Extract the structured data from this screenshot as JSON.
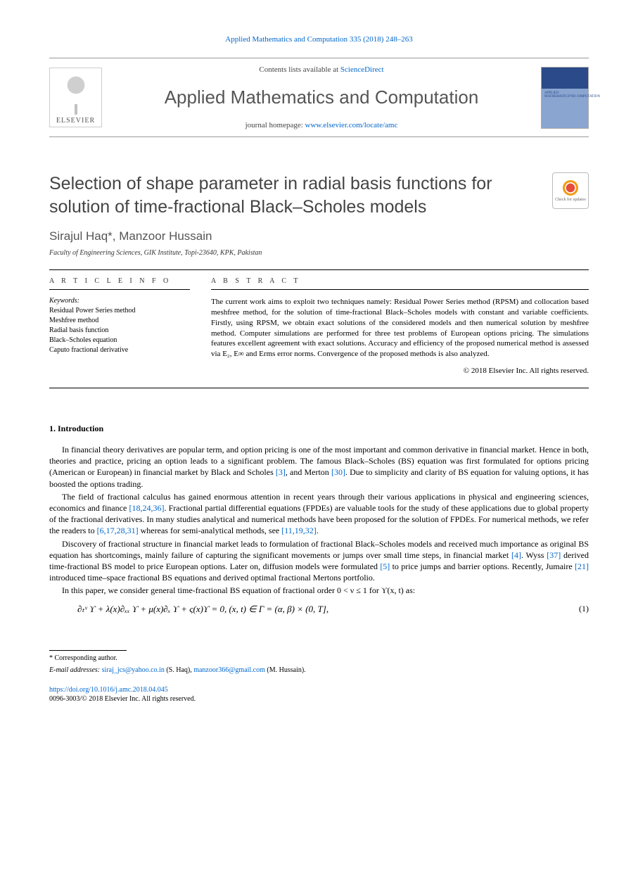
{
  "citation": {
    "text": "Applied Mathematics and Computation 335 (2018) 248–263"
  },
  "header": {
    "contents_prefix": "Contents lists available at ",
    "contents_link": "ScienceDirect",
    "journal": "Applied Mathematics and Computation",
    "homepage_prefix": "journal homepage: ",
    "homepage_url": "www.elsevier.com/locate/amc",
    "publisher": "ELSEVIER"
  },
  "title": "Selection of shape parameter in radial basis functions for solution of time-fractional Black–Scholes models",
  "crossmark_label": "Check for updates",
  "authors": "Sirajul Haq*, Manzoor Hussain",
  "affiliation": "Faculty of Engineering Sciences, GIK Institute, Topi-23640, KPK, Pakistan",
  "info": {
    "heading": "A R T I C L E    I N F O",
    "kw_head": "Keywords:",
    "keywords": [
      "Residual Power Series method",
      "Meshfree method",
      "Radial basis function",
      "Black–Scholes equation",
      "Caputo fractional derivative"
    ]
  },
  "abs": {
    "heading": "A B S T R A C T",
    "text": "The current work aims to exploit two techniques namely: Residual Power Series method (RPSM) and collocation based meshfree method, for the solution of time-fractional Black–Scholes models with constant and variable coefficients. Firstly, using RPSM, we obtain exact solutions of the considered models and then numerical solution by meshfree method. Computer simulations are performed for three test problems of European options pricing. The simulations features excellent agreement with exact solutions. Accuracy and efficiency of the proposed numerical method is assessed via E₂, E∞ and Erms error norms. Convergence of the proposed methods is also analyzed.",
    "copyright": "© 2018 Elsevier Inc. All rights reserved."
  },
  "intro": {
    "heading": "1. Introduction",
    "p1_a": "In financial theory derivatives are popular term, and option pricing is one of the most important and common derivative in financial market. Hence in both, theories and practice, pricing an option leads to a significant problem. The famous Black–Scholes (BS) equation was first formulated for options pricing (American or European) in financial market by Black and Scholes ",
    "p1_ref1": "[3]",
    "p1_b": ", and Merton ",
    "p1_ref2": "[30]",
    "p1_c": ". Due to simplicity and clarity of BS equation for valuing options, it has boosted the options trading.",
    "p2_a": "The field of fractional calculus has gained enormous attention in recent years through their various applications in physical and engineering sciences, economics and finance ",
    "p2_ref1": "[18,24,36]",
    "p2_b": ". Fractional partial differential equations (FPDEs) are valuable tools for the study of these applications due to global property of the fractional derivatives. In many studies analytical and numerical methods have been proposed for the solution of FPDEs. For numerical methods, we refer the readers to ",
    "p2_ref2": "[6,17,28,31]",
    "p2_c": " whereas for semi-analytical methods, see ",
    "p2_ref3": "[11,19,32]",
    "p2_d": ".",
    "p3_a": "Discovery of fractional structure in financial market leads to formulation of fractional Black–Scholes models and received much importance as original BS equation has shortcomings, mainly failure of capturing the significant movements or jumps over small time steps, in financial market ",
    "p3_ref1": "[4]",
    "p3_b": ". Wyss ",
    "p3_ref2": "[37]",
    "p3_c": " derived time-fractional BS model to price European options. Later on, diffusion models were formulated ",
    "p3_ref3": "[5]",
    "p3_d": " to price jumps and barrier options. Recently, Jumaire ",
    "p3_ref4": "[21]",
    "p3_e": " introduced time–space fractional BS equations and derived optimal fractional Mertons portfolio.",
    "p4": "In this paper, we consider general time-fractional BS equation of fractional order 0 < ν ≤ 1 for ϒ(x, t) as:"
  },
  "eq": {
    "expr": "∂ₜᵛ ϒ + λ(x)∂ₓₓ ϒ + μ(x)∂ₓ ϒ + ς(x)ϒ = 0,    (x, t) ∈ Γ = (α, β) × (0, T],",
    "num": "(1)"
  },
  "footnote": {
    "star": "* Corresponding author.",
    "emails_label": "E-mail addresses: ",
    "email1": "siraj_jcs@yahoo.co.in",
    "email1_who": " (S. Haq), ",
    "email2": "manzoor366@gmail.com",
    "email2_who": " (M. Hussain)."
  },
  "bottom": {
    "doi": "https://doi.org/10.1016/j.amc.2018.04.045",
    "issn_line": "0096-3003/© 2018 Elsevier Inc. All rights reserved."
  }
}
